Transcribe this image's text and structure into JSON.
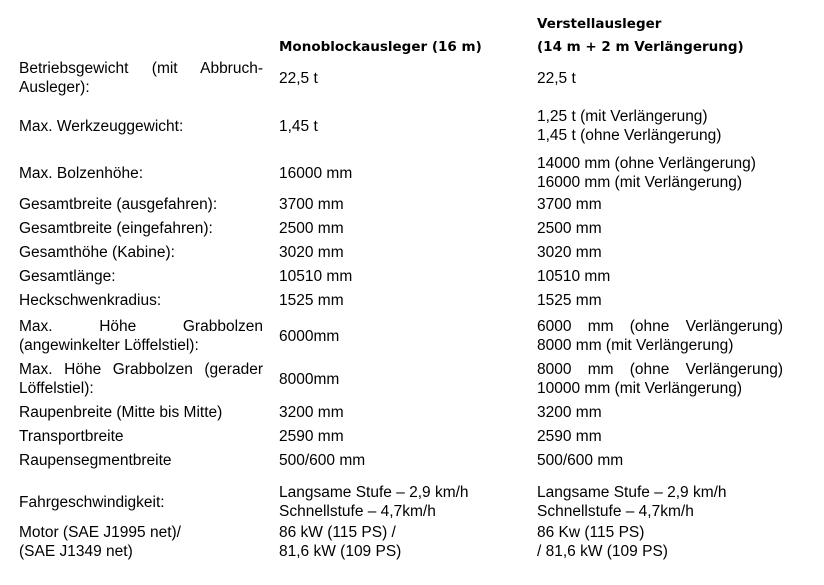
{
  "header": {
    "col2": "Monoblockausleger (16 m)",
    "col3_line1": "Verstellausleger",
    "col3_line2": "(14 m + 2 m Verlängerung)"
  },
  "rows": [
    {
      "label": "Betriebsgewicht (mit Abbruch-Ausleger):",
      "mono": [
        "22,5 t"
      ],
      "verstell": [
        "22,5 t"
      ]
    },
    {
      "label": "Max. Werkzeuggewicht:",
      "mono": [
        "1,45 t"
      ],
      "verstell": [
        "1,25 t (mit Verlängerung)",
        "1,45 t (ohne Verlängerung)"
      ]
    },
    {
      "label": "Max. Bolzenhöhe:",
      "mono": [
        "16000 mm"
      ],
      "verstell": [
        "14000 mm (ohne Verlängerung)",
        "16000 mm (mit Verlängerung)"
      ]
    },
    {
      "label": "Gesamtbreite (ausgefahren):",
      "mono": [
        "3700 mm"
      ],
      "verstell": [
        "3700 mm"
      ]
    },
    {
      "label": "Gesamtbreite (eingefahren):",
      "mono": [
        "2500 mm"
      ],
      "verstell": [
        "2500 mm"
      ]
    },
    {
      "label": "Gesamthöhe (Kabine):",
      "mono": [
        "3020 mm"
      ],
      "verstell": [
        "3020 mm"
      ]
    },
    {
      "label": "Gesamtlänge:",
      "mono": [
        "10510 mm"
      ],
      "verstell": [
        "10510 mm"
      ]
    },
    {
      "label": "Heckschwenkradius:",
      "mono": [
        "1525 mm"
      ],
      "verstell": [
        "1525 mm"
      ]
    },
    {
      "label": "Max. Höhe Grabbolzen (angewinkelter Löffelstiel):",
      "mono": [
        "6000mm"
      ],
      "verstell": [
        "6000 mm (ohne Verlängerung)",
        "8000 mm (mit Verlängerung)"
      ]
    },
    {
      "label": "Max. Höhe Grabbolzen (gerader Löffelstiel):",
      "mono": [
        "8000mm"
      ],
      "verstell": [
        "8000 mm (ohne Verlängerung)",
        "10000 mm (mit Verlängerung)"
      ]
    },
    {
      "label": "Raupenbreite (Mitte bis Mitte)",
      "mono": [
        "3200 mm"
      ],
      "verstell": [
        "3200 mm"
      ]
    },
    {
      "label": "Transportbreite",
      "mono": [
        "2590 mm"
      ],
      "verstell": [
        "2590 mm"
      ]
    },
    {
      "label": "Raupensegmentbreite",
      "mono": [
        "500/600 mm"
      ],
      "verstell": [
        "500/600 mm"
      ]
    },
    {
      "label": "Fahrgeschwindigkeit:",
      "mono": [
        "Langsame Stufe –  2,9 km/h",
        "Schnellstufe –  4,7km/h"
      ],
      "verstell": [
        "Langsame Stufe –  2,9 km/h",
        "Schnellstufe –  4,7km/h"
      ]
    },
    {
      "label": "Motor (SAE J1995 net)/ (SAE J1349 net)",
      "mono": [
        "86 kW (115 PS) /",
        "81,6 kW (109 PS)"
      ],
      "verstell": [
        "86 Kw (115 PS)",
        "/ 81,6 kW (109 PS)"
      ]
    }
  ]
}
